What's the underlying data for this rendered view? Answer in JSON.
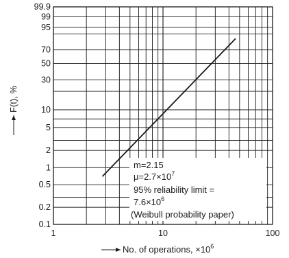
{
  "chart_data": {
    "type": "line",
    "scale": "weibull-probability",
    "title": "",
    "xlabel": "No. of operations, ×10",
    "xlabel_exp": "6",
    "ylabel": "F(t), %",
    "x_scale": "log",
    "y_scale": "weibull",
    "xlim": [
      1,
      100
    ],
    "ylim": [
      0.1,
      99.9
    ],
    "grid": true,
    "x_ticks": [
      "1",
      "10",
      "100"
    ],
    "y_ticks": [
      "99.9",
      "99",
      "95",
      "70",
      "50",
      "30",
      "10",
      "5",
      "2",
      "1",
      "0.5",
      "0.2",
      "0.1"
    ],
    "y_gridlines": [
      0.1,
      0.2,
      0.3,
      0.5,
      1,
      2,
      3,
      5,
      7,
      10,
      20,
      30,
      50,
      70,
      90,
      95,
      99,
      99.9
    ],
    "series": [
      {
        "x": [
          2.8,
          46
        ],
        "y": [
          0.7,
          85
        ]
      }
    ],
    "annotation": {
      "m": "m=2.15",
      "mu_base": "μ=2.7×10",
      "mu_exp": "7",
      "limit_line1": "95% reliability limit =",
      "limit_base": "7.6×10",
      "limit_exp": "6",
      "paper": "(Weibull probability paper)"
    },
    "colors": {
      "line": "#1a1a1a",
      "grid": "#1a1a1a",
      "background": "#ffffff"
    }
  }
}
